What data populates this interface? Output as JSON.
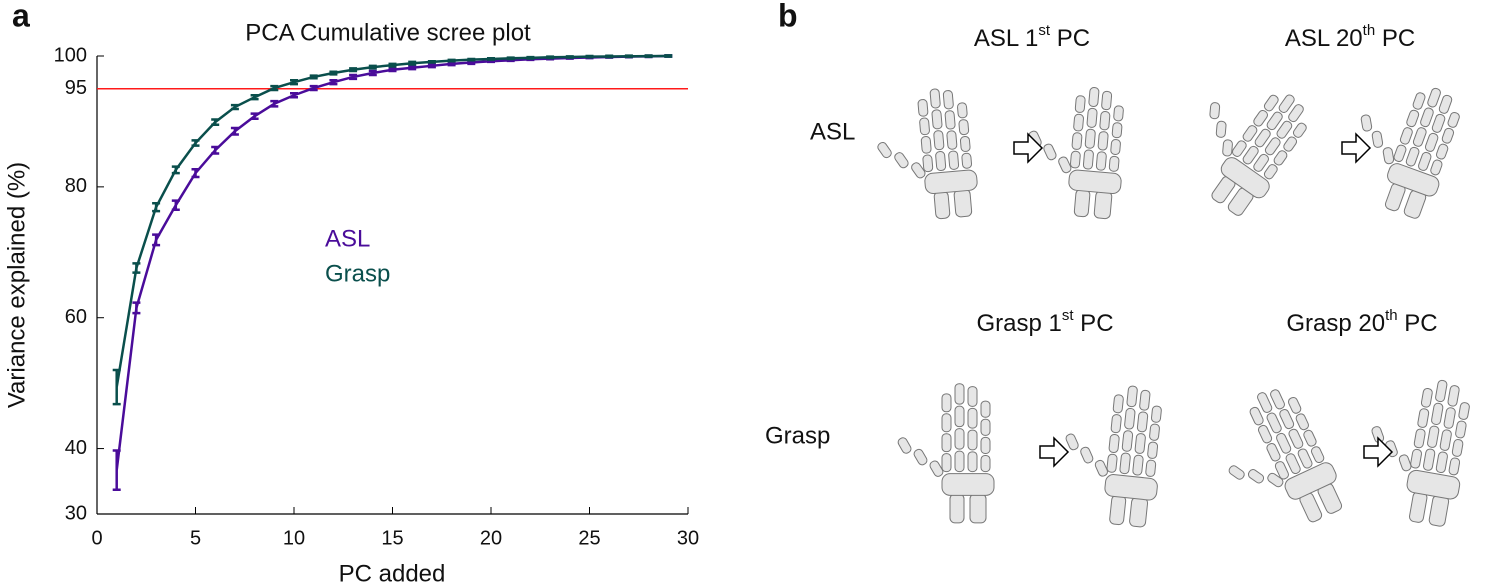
{
  "chart_data": {
    "type": "line",
    "title": "PCA Cumulative scree plot",
    "xlabel": "PC added",
    "ylabel": "Variance explained (%)",
    "x": [
      1,
      2,
      3,
      4,
      5,
      6,
      7,
      8,
      9,
      10,
      11,
      12,
      13,
      14,
      15,
      16,
      17,
      18,
      19,
      20,
      21,
      22,
      23,
      24,
      25,
      26,
      27,
      28,
      29
    ],
    "series": [
      {
        "name": "ASL",
        "color": "#4a0c9a",
        "values": [
          36.7,
          61.5,
          71.9,
          77.2,
          82.1,
          85.6,
          88.5,
          90.8,
          92.7,
          94.0,
          95.1,
          96.0,
          96.8,
          97.4,
          97.9,
          98.2,
          98.5,
          98.8,
          99.0,
          99.2,
          99.35,
          99.5,
          99.6,
          99.7,
          99.78,
          99.85,
          99.9,
          99.95,
          100
        ],
        "errors": [
          3.0,
          0.8,
          0.8,
          0.7,
          0.6,
          0.5,
          0.5,
          0.4,
          0.4,
          0.3,
          0.3,
          0.3,
          0.3,
          0.3,
          0.2,
          0.2,
          0.2,
          0.2,
          0.2,
          0.1,
          0.1,
          0.1,
          0.1,
          0.1,
          0.1,
          0.1,
          0.1,
          0.1,
          0.1
        ]
      },
      {
        "name": "Grasp",
        "color": "#0a4f4c",
        "values": [
          49.4,
          67.6,
          76.9,
          82.6,
          86.7,
          89.9,
          92.2,
          93.7,
          95.1,
          96.0,
          96.8,
          97.4,
          97.9,
          98.3,
          98.6,
          98.9,
          99.1,
          99.3,
          99.45,
          99.55,
          99.65,
          99.72,
          99.8,
          99.85,
          99.9,
          99.93,
          99.96,
          99.98,
          100
        ],
        "errors": [
          2.6,
          0.7,
          0.6,
          0.5,
          0.4,
          0.4,
          0.3,
          0.3,
          0.3,
          0.3,
          0.2,
          0.2,
          0.2,
          0.2,
          0.2,
          0.2,
          0.1,
          0.1,
          0.1,
          0.1,
          0.1,
          0.1,
          0.1,
          0.1,
          0.1,
          0.1,
          0.1,
          0.1,
          0.1
        ]
      }
    ],
    "xlim": [
      0,
      30
    ],
    "xticks": [
      0,
      5,
      10,
      15,
      20,
      25,
      30
    ],
    "ylim": [
      30,
      100
    ],
    "yticks": [
      30,
      40,
      60,
      80,
      95,
      100
    ],
    "reference_line": 95,
    "reference_color": "#ff1a1a",
    "grid": false
  },
  "panel_labels": [
    "a",
    "b"
  ],
  "panel_b": {
    "rows": [
      "ASL",
      "Grasp"
    ],
    "titles": [
      [
        "ASL 1",
        "st",
        " PC"
      ],
      [
        "ASL 20",
        "th",
        " PC"
      ],
      [
        "Grasp 1",
        "st",
        " PC"
      ],
      [
        "Grasp 20",
        "th",
        " PC"
      ]
    ]
  }
}
